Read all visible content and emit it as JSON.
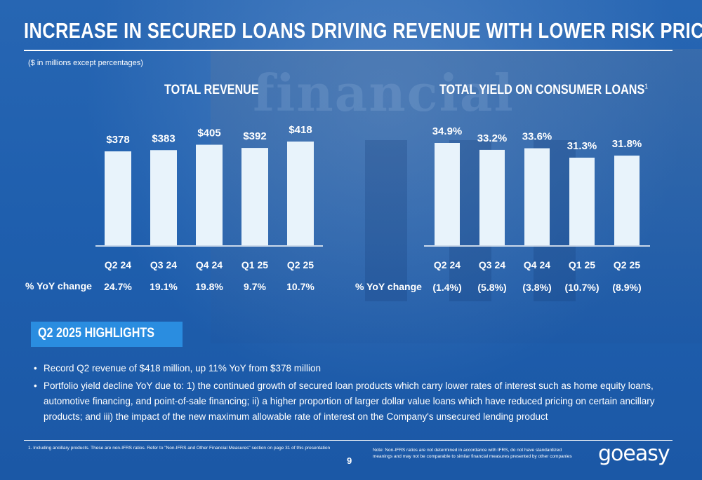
{
  "header": {
    "title": "INCREASE IN SECURED LOANS DRIVING REVENUE WITH LOWER RISK PRICING",
    "subtitle": "($ in millions except percentages)"
  },
  "background": {
    "sign_text": "financial"
  },
  "chart_data": [
    {
      "type": "bar",
      "title": "TOTAL REVENUE",
      "categories": [
        "Q2 24",
        "Q3 24",
        "Q4 24",
        "Q1 25",
        "Q2 25"
      ],
      "values": [
        378,
        383,
        405,
        392,
        418
      ],
      "value_labels": [
        "$378",
        "$383",
        "$405",
        "$392",
        "$418"
      ],
      "yoy_label": "% YoY change",
      "yoy_values": [
        "24.7%",
        "19.1%",
        "19.8%",
        "9.7%",
        "10.7%"
      ],
      "bar_color": "#e8f3fb"
    },
    {
      "type": "bar",
      "title": "TOTAL YIELD ON CONSUMER LOANS",
      "title_footnote": "1",
      "categories": [
        "Q2 24",
        "Q3 24",
        "Q4 24",
        "Q1 25",
        "Q2 25"
      ],
      "values": [
        34.9,
        33.2,
        33.6,
        31.3,
        31.8
      ],
      "value_labels": [
        "34.9%",
        "33.2%",
        "33.6%",
        "31.3%",
        "31.8%"
      ],
      "yoy_label": "% YoY change",
      "yoy_values": [
        "(1.4%)",
        "(5.8%)",
        "(3.8%)",
        "(10.7%)",
        "(8.9%)"
      ],
      "bar_color": "#e8f3fb"
    }
  ],
  "highlights": {
    "heading": "Q2 2025 HIGHLIGHTS",
    "bullets": [
      "Record Q2 revenue of $418 million, up 11% YoY from $378 million",
      "Portfolio yield decline YoY due to: 1) the continued growth of secured loan products which carry lower rates of interest such as home equity loans, automotive financing, and point-of-sale financing; ii) a higher proportion of larger dollar value loans which have reduced pricing on certain ancillary products; and iii) the impact of the new maximum allowable rate of interest on the Company's unsecured lending product"
    ]
  },
  "footer": {
    "footnote": "1.   Including ancillary products. These are non-IFRS ratios. Refer to \"Non-IFRS and Other Financial Measures\" section on page 31 of this presentation",
    "page_number": "9",
    "note": "Note: Non-IFRS ratios are not determined in accordance with IFRS, do not have standardized meanings and may not be comparable to similar financial measures presented by other companies",
    "logo_text": "goeasy"
  },
  "colors": {
    "accent": "#2a8de0",
    "background": "#1f5fae",
    "bar": "#e8f3fb"
  }
}
